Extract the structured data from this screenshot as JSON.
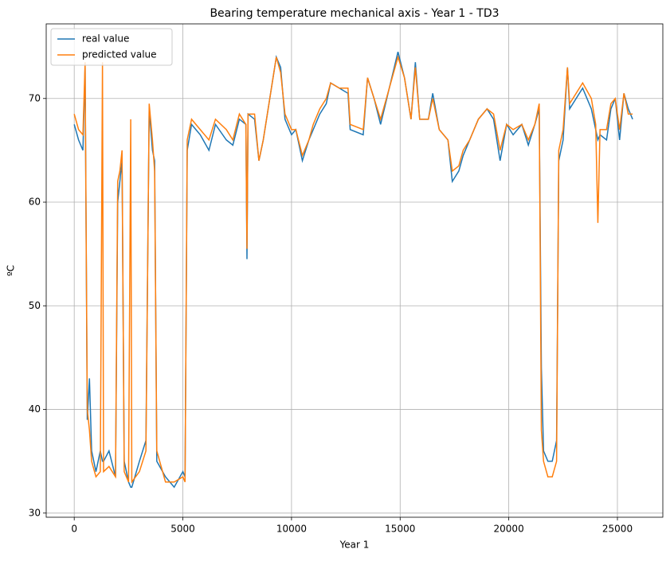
{
  "chart_data": {
    "type": "line",
    "title": "Bearing temperature mechanical axis - Year 1 - TD3",
    "x_label": "Year 1",
    "y_label": "ºC",
    "x": [
      0,
      200,
      400,
      500,
      600,
      700,
      800,
      1000,
      1200,
      1300,
      1350,
      1600,
      1900,
      2000,
      2100,
      2200,
      2300,
      2500,
      2600,
      2650,
      3000,
      3300,
      3450,
      3600,
      3700,
      3800,
      4200,
      4600,
      5000,
      5100,
      5200,
      5400,
      5800,
      6200,
      6500,
      7000,
      7300,
      7600,
      7900,
      7950,
      8000,
      8300,
      8500,
      8700,
      9000,
      9300,
      9500,
      9700,
      10000,
      10200,
      10500,
      10800,
      11000,
      11300,
      11600,
      11800,
      12200,
      12600,
      12700,
      13300,
      13500,
      13800,
      14100,
      14500,
      14900,
      15200,
      15500,
      15700,
      15900,
      16300,
      16500,
      16800,
      17200,
      17400,
      17700,
      17900,
      18200,
      18600,
      19000,
      19300,
      19600,
      19900,
      20200,
      20600,
      20900,
      21200,
      21400,
      21500,
      21600,
      21800,
      22000,
      22200,
      22300,
      22500,
      22700,
      22800,
      23100,
      23400,
      23800,
      24000,
      24100,
      24200,
      24500,
      24700,
      24900,
      25100,
      25300,
      25500,
      25700
    ],
    "series": [
      {
        "name": "real value",
        "color": "#1f77b4",
        "values": [
          67.5,
          66,
          65,
          73,
          39,
          43,
          36,
          34,
          36,
          35,
          35,
          36,
          33.5,
          60,
          62,
          64,
          35,
          33,
          32.5,
          32.5,
          35,
          37,
          69,
          65,
          64,
          35,
          33.5,
          32.5,
          34,
          33.5,
          65,
          67.5,
          66.5,
          65,
          67.5,
          66,
          65.5,
          68,
          67.5,
          54.5,
          68.5,
          68,
          64,
          66,
          70,
          74,
          73,
          68,
          66.5,
          67,
          64,
          66,
          67,
          68.5,
          69.5,
          71.5,
          71,
          70.5,
          67,
          66.5,
          72,
          70,
          67.5,
          71,
          74.5,
          72,
          68,
          73.5,
          68,
          68,
          70.5,
          67,
          66,
          62,
          63,
          64.5,
          66,
          68,
          69,
          68,
          64,
          67.5,
          66.5,
          67.5,
          65.5,
          67.5,
          69,
          44,
          36,
          35,
          35,
          37,
          64,
          66,
          73,
          69,
          70,
          71,
          69,
          67,
          66,
          66.5,
          66,
          69,
          70,
          66,
          70.5,
          69,
          68
        ]
      },
      {
        "name": "predicted value",
        "color": "#ff7f0e",
        "values": [
          68.5,
          67,
          66.5,
          73.5,
          40,
          38,
          35,
          33.5,
          34,
          73.5,
          34,
          34.5,
          33.5,
          62,
          63,
          65,
          34,
          33,
          68,
          33,
          34,
          36,
          69.5,
          66,
          63,
          36,
          33,
          33,
          33.5,
          33,
          66,
          68,
          67,
          66,
          68,
          67,
          66,
          68.5,
          67.5,
          55.5,
          68.5,
          68.5,
          64,
          66,
          70,
          74,
          72.5,
          68.5,
          67,
          67,
          64.5,
          66,
          67.5,
          69,
          70,
          71.5,
          71,
          71,
          67.5,
          67,
          72,
          70,
          68,
          71,
          74,
          72,
          68,
          73,
          68,
          68,
          70,
          67,
          66,
          63,
          63.5,
          65,
          66,
          68,
          69,
          68.5,
          65,
          67.5,
          67,
          67.5,
          66,
          67.5,
          69.5,
          38,
          35,
          33.5,
          33.5,
          35,
          65,
          67,
          73,
          69.5,
          70.5,
          71.5,
          70,
          67.5,
          58,
          67,
          67,
          69.5,
          70,
          67,
          70.5,
          68.5,
          68.5
        ]
      }
    ],
    "xlim": [
      -1290,
      27090
    ],
    "ylim": [
      29.6,
      77.2
    ],
    "xticks": [
      0,
      5000,
      10000,
      15000,
      20000,
      25000
    ],
    "yticks": [
      30,
      40,
      50,
      60,
      70
    ],
    "grid": true,
    "legend": "upper left"
  }
}
